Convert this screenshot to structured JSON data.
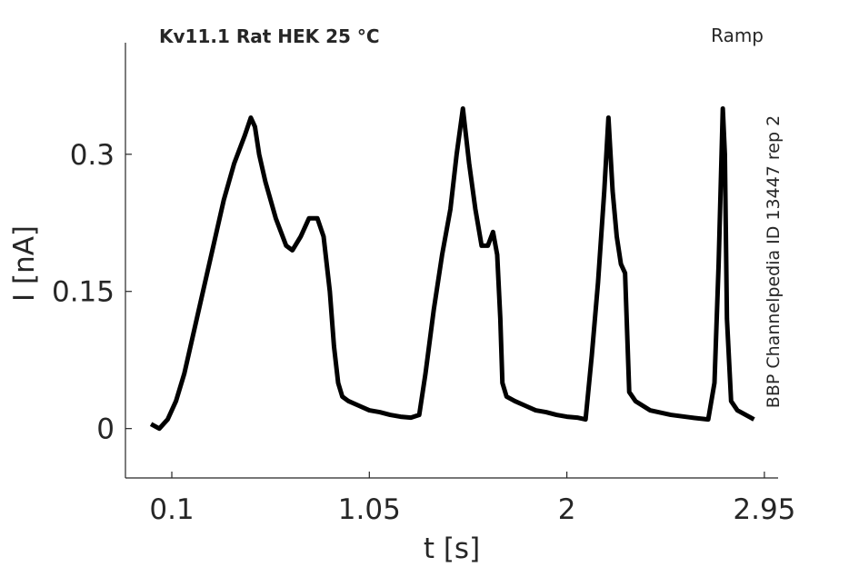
{
  "chart_data": {
    "type": "line",
    "title": "Kv11.1  Rat  HEK  25 °C",
    "subtitle": "Ramp",
    "annotation": "BBP Channelpedia ID 13447 rep 2",
    "x_label": "t [s]",
    "y_label": "I [nA]",
    "xlim": [
      -0.123,
      3.016
    ],
    "ylim": [
      -0.054,
      0.422
    ],
    "xticks": [
      0.1,
      1.05,
      2,
      2.95
    ],
    "yticks": [
      0,
      0.15,
      0.3
    ],
    "grid": false,
    "x": [
      0.0,
      0.04,
      0.08,
      0.12,
      0.16,
      0.2,
      0.25,
      0.3,
      0.35,
      0.4,
      0.45,
      0.48,
      0.5,
      0.52,
      0.55,
      0.6,
      0.65,
      0.68,
      0.72,
      0.76,
      0.8,
      0.83,
      0.86,
      0.88,
      0.9,
      0.92,
      0.95,
      1.0,
      1.05,
      1.1,
      1.15,
      1.2,
      1.25,
      1.29,
      1.32,
      1.36,
      1.4,
      1.44,
      1.47,
      1.5,
      1.53,
      1.56,
      1.59,
      1.62,
      1.645,
      1.665,
      1.68,
      1.69,
      1.71,
      1.75,
      1.8,
      1.85,
      1.9,
      1.95,
      2.0,
      2.05,
      2.09,
      2.12,
      2.15,
      2.18,
      2.2,
      2.22,
      2.24,
      2.26,
      2.28,
      2.3,
      2.33,
      2.4,
      2.5,
      2.6,
      2.68,
      2.71,
      2.73,
      2.75,
      2.76,
      2.77,
      2.79,
      2.82,
      2.86,
      2.9
    ],
    "series": [
      {
        "name": "I",
        "color": "#000000",
        "values": [
          0.005,
          0.0,
          0.01,
          0.03,
          0.06,
          0.1,
          0.15,
          0.2,
          0.25,
          0.29,
          0.32,
          0.34,
          0.33,
          0.3,
          0.27,
          0.23,
          0.2,
          0.195,
          0.21,
          0.23,
          0.23,
          0.21,
          0.15,
          0.09,
          0.05,
          0.035,
          0.03,
          0.025,
          0.02,
          0.018,
          0.015,
          0.013,
          0.012,
          0.015,
          0.06,
          0.13,
          0.19,
          0.24,
          0.3,
          0.35,
          0.29,
          0.24,
          0.2,
          0.2,
          0.215,
          0.19,
          0.12,
          0.05,
          0.035,
          0.03,
          0.025,
          0.02,
          0.018,
          0.015,
          0.013,
          0.012,
          0.01,
          0.08,
          0.16,
          0.26,
          0.34,
          0.26,
          0.21,
          0.18,
          0.17,
          0.04,
          0.03,
          0.02,
          0.015,
          0.012,
          0.01,
          0.05,
          0.18,
          0.35,
          0.3,
          0.12,
          0.03,
          0.02,
          0.015,
          0.01
        ]
      }
    ]
  }
}
